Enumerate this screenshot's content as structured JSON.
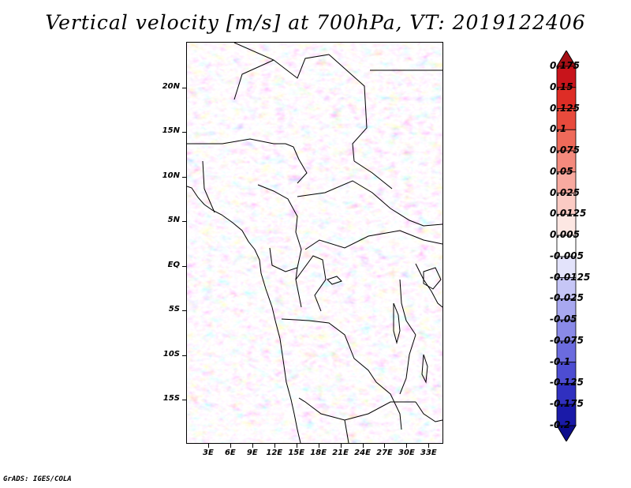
{
  "title": "Vertical velocity [m/s] at 700hPa, VT: 2019122406",
  "footer": "GrADS: IGES/COLA",
  "map": {
    "lat_labels": [
      "20N",
      "15N",
      "10N",
      "5N",
      "EQ",
      "5S",
      "10S",
      "15S"
    ],
    "lon_labels": [
      "3E",
      "6E",
      "9E",
      "12E",
      "15E",
      "18E",
      "21E",
      "24E",
      "27E",
      "30E",
      "33E"
    ],
    "lat_range": [
      -20,
      25
    ],
    "lon_range": [
      0,
      35
    ],
    "field": "vertical velocity",
    "units": "m/s",
    "level": "700hPa"
  },
  "colorbar": {
    "levels": [
      "0.175",
      "0.15",
      "0.125",
      "0.1",
      "0.075",
      "0.05",
      "0.025",
      "0.0125",
      "0.005",
      "-0.005",
      "-0.0125",
      "-0.025",
      "-0.05",
      "-0.075",
      "-0.1",
      "-0.125",
      "-0.175",
      "-0.2"
    ],
    "colors": [
      "#a50f15",
      "#c8141b",
      "#de2d26",
      "#e84a3c",
      "#ef6a5a",
      "#f48a7d",
      "#f8aaa0",
      "#fbcbc4",
      "#fde7e3",
      "#ffffff",
      "#e3e3fb",
      "#c6c6f6",
      "#a8a8f0",
      "#8a8ae8",
      "#6b6bde",
      "#4d4dd2",
      "#3030c0",
      "#1a1aa8",
      "#0d0d8c"
    ]
  }
}
